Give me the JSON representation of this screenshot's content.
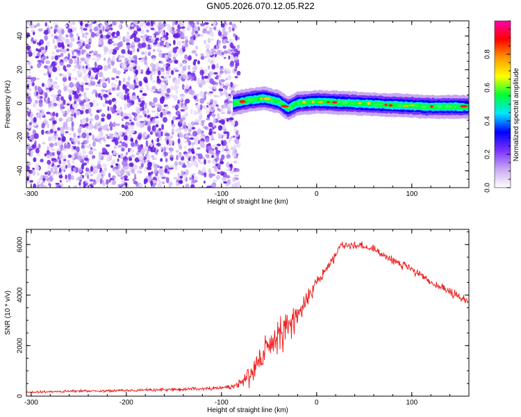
{
  "title": "GN05.2026.070.12.05.R22",
  "chart_data": [
    {
      "type": "heatmap",
      "xlabel": "Height of straight line (km)",
      "ylabel": "Frequency (Hz)",
      "xlim": [
        -305,
        160
      ],
      "ylim": [
        -50,
        49
      ],
      "xticks": [
        -300,
        -200,
        -100,
        0,
        100
      ],
      "yticks": [
        -40,
        -20,
        0,
        20,
        40
      ],
      "noise_region_x": [
        -305,
        -82
      ],
      "signal": {
        "x_start": -88,
        "x_end": 160,
        "center_frequency": [
          {
            "x": -88,
            "y": 0
          },
          {
            "x": -70,
            "y": 2
          },
          {
            "x": -55,
            "y": 3
          },
          {
            "x": -40,
            "y": 1
          },
          {
            "x": -30,
            "y": -3
          },
          {
            "x": -20,
            "y": 0
          },
          {
            "x": 0,
            "y": 1
          },
          {
            "x": 40,
            "y": 0
          },
          {
            "x": 80,
            "y": -1
          },
          {
            "x": 120,
            "y": -2
          },
          {
            "x": 160,
            "y": -2
          }
        ]
      },
      "colorbar": {
        "label": "Normalized spectral amplitude",
        "range": [
          0,
          1
        ],
        "ticks": [
          0.0,
          0.2,
          0.4,
          0.6,
          0.8
        ],
        "colors": [
          "#ffffff",
          "#c8a8f0",
          "#7a33ff",
          "#0000ff",
          "#00e5ff",
          "#00ff33",
          "#ffff00",
          "#ff9900",
          "#ff0000",
          "#ff00aa"
        ]
      }
    },
    {
      "type": "line",
      "xlabel": "Height of straight line (km)",
      "ylabel": "SNR (10 * v/v)",
      "xlim": [
        -305,
        160
      ],
      "ylim": [
        0,
        6600
      ],
      "xticks": [
        -300,
        -200,
        -100,
        0,
        100
      ],
      "yticks": [
        0,
        2000,
        4000,
        6000
      ],
      "line_color": "#ee2222",
      "series": [
        {
          "x": [
            -305,
            -250,
            -200,
            -150,
            -100,
            -85,
            -70,
            -60,
            -50,
            -40,
            -30,
            -20,
            -10,
            0,
            10,
            20,
            25,
            40,
            60,
            80,
            100,
            120,
            140,
            160
          ],
          "y": [
            150,
            200,
            230,
            260,
            320,
            400,
            900,
            1400,
            2000,
            2400,
            2800,
            3200,
            3800,
            4500,
            5000,
            5600,
            6000,
            6000,
            5800,
            5400,
            5000,
            4500,
            4100,
            3700
          ],
          "spread": [
            60,
            70,
            80,
            90,
            100,
            200,
            700,
            800,
            1000,
            1000,
            900,
            700,
            500,
            350,
            300,
            300,
            250,
            250,
            250,
            250,
            250,
            250,
            250,
            300
          ]
        }
      ]
    }
  ]
}
